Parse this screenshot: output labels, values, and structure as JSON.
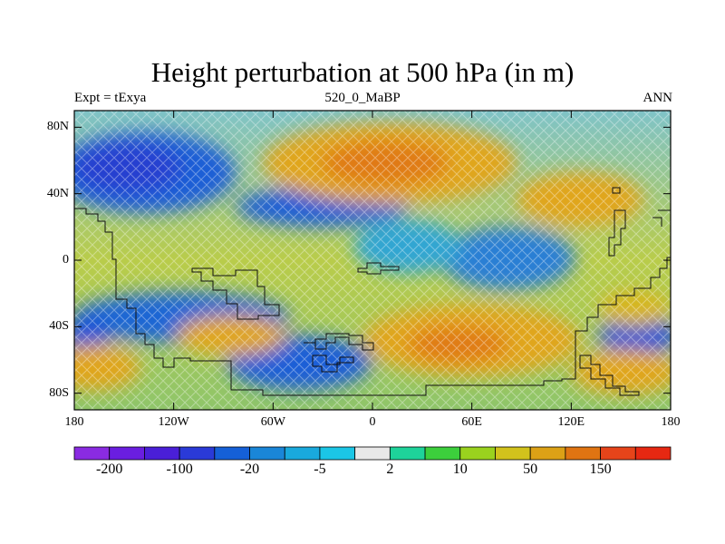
{
  "title": "Height perturbation at 500 hPa (in m)",
  "subtitle_left": "Expt = tExya",
  "subtitle_center": "520_0_MaBP",
  "subtitle_right": "ANN",
  "lat_ticks": [
    {
      "value": 80,
      "label": "80N"
    },
    {
      "value": 40,
      "label": "40N"
    },
    {
      "value": 0,
      "label": "0"
    },
    {
      "value": -40,
      "label": "40S"
    },
    {
      "value": -80,
      "label": "80S"
    }
  ],
  "lon_ticks": [
    {
      "value": -180,
      "label": "180"
    },
    {
      "value": -120,
      "label": "120W"
    },
    {
      "value": -60,
      "label": "60W"
    },
    {
      "value": 0,
      "label": "0"
    },
    {
      "value": 60,
      "label": "60E"
    },
    {
      "value": 120,
      "label": "120E"
    },
    {
      "value": 180,
      "label": "180"
    }
  ],
  "colorbar": {
    "colors": [
      "#8a2be2",
      "#6a1ee0",
      "#4a1fd8",
      "#2a3ad8",
      "#1560d8",
      "#1a86d8",
      "#19a9dd",
      "#1bc6e6",
      "#e8e8e8",
      "#1ed39a",
      "#3ccf3c",
      "#9ad21e",
      "#d2c21c",
      "#dca116",
      "#e07412",
      "#e6441a",
      "#e62812"
    ],
    "labels": [
      {
        "after_box": 1,
        "text": "-200"
      },
      {
        "after_box": 3,
        "text": "-100"
      },
      {
        "after_box": 5,
        "text": "-20"
      },
      {
        "after_box": 7,
        "text": "-5"
      },
      {
        "after_box": 9,
        "text": "2"
      },
      {
        "after_box": 11,
        "text": "10"
      },
      {
        "after_box": 13,
        "text": "50"
      },
      {
        "after_box": 15,
        "text": "150"
      }
    ]
  }
}
